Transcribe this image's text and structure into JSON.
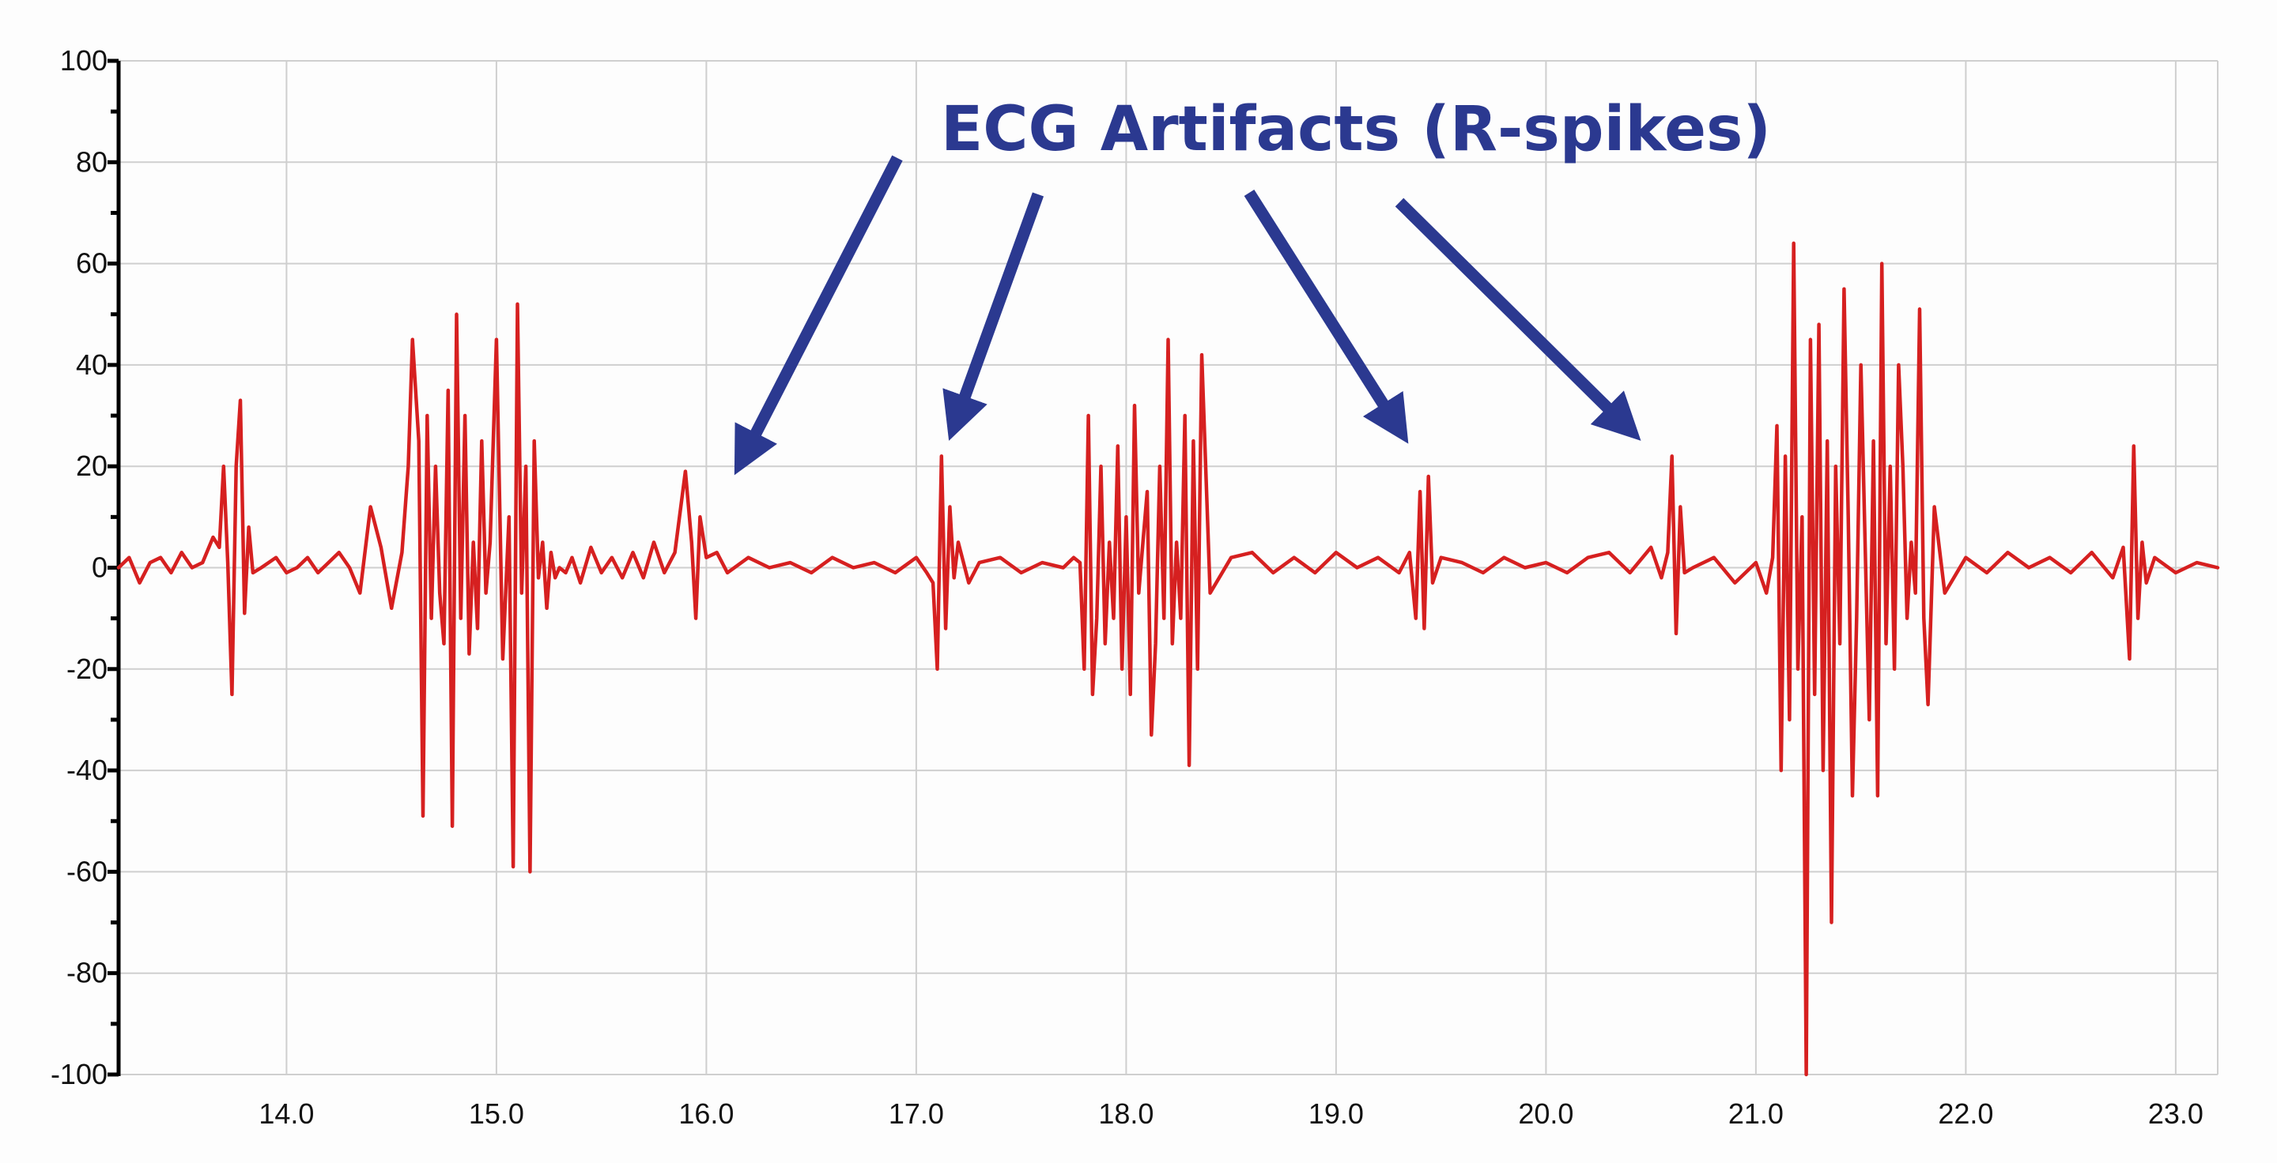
{
  "chart_data": {
    "type": "line",
    "title": "",
    "xlabel": "",
    "ylabel": "",
    "xlim": [
      13.2,
      23.2
    ],
    "ylim": [
      -100,
      100
    ],
    "x_ticks": [
      14.0,
      15.0,
      16.0,
      17.0,
      18.0,
      19.0,
      20.0,
      21.0,
      22.0,
      23.0
    ],
    "x_tick_labels": [
      "14.0",
      "15.0",
      "16.0",
      "17.0",
      "18.0",
      "19.0",
      "20.0",
      "21.0",
      "22.0",
      "23.0"
    ],
    "y_ticks": [
      -100,
      -80,
      -60,
      -40,
      -20,
      0,
      20,
      40,
      60,
      80,
      100
    ],
    "y_tick_labels": [
      "-100",
      "-80",
      "-60",
      "-40",
      "-20",
      "0",
      "20",
      "40",
      "60",
      "80",
      "100"
    ],
    "grid": true,
    "legend": "none",
    "series": [
      {
        "color": "#d62020",
        "x": [
          13.2,
          13.25,
          13.3,
          13.35,
          13.4,
          13.45,
          13.5,
          13.55,
          13.6,
          13.65,
          13.68,
          13.7,
          13.72,
          13.74,
          13.76,
          13.78,
          13.8,
          13.82,
          13.84,
          13.88,
          13.95,
          14.0,
          14.05,
          14.1,
          14.15,
          14.2,
          14.25,
          14.3,
          14.35,
          14.4,
          14.45,
          14.5,
          14.55,
          14.58,
          14.6,
          14.63,
          14.65,
          14.67,
          14.69,
          14.71,
          14.73,
          14.75,
          14.77,
          14.79,
          14.81,
          14.83,
          14.85,
          14.87,
          14.89,
          14.91,
          14.93,
          14.95,
          14.97,
          15.0,
          15.03,
          15.06,
          15.08,
          15.1,
          15.12,
          15.14,
          15.16,
          15.18,
          15.2,
          15.22,
          15.24,
          15.26,
          15.28,
          15.3,
          15.33,
          15.36,
          15.4,
          15.45,
          15.5,
          15.55,
          15.6,
          15.65,
          15.7,
          15.75,
          15.8,
          15.85,
          15.9,
          15.93,
          15.95,
          15.97,
          16.0,
          16.05,
          16.1,
          16.2,
          16.3,
          16.4,
          16.5,
          16.6,
          16.7,
          16.8,
          16.9,
          17.0,
          17.05,
          17.08,
          17.1,
          17.12,
          17.14,
          17.16,
          17.18,
          17.2,
          17.25,
          17.3,
          17.4,
          17.5,
          17.6,
          17.7,
          17.75,
          17.78,
          17.8,
          17.82,
          17.84,
          17.86,
          17.88,
          17.9,
          17.92,
          17.94,
          17.96,
          17.98,
          18.0,
          18.02,
          18.04,
          18.06,
          18.08,
          18.1,
          18.12,
          18.14,
          18.16,
          18.18,
          18.2,
          18.22,
          18.24,
          18.26,
          18.28,
          18.3,
          18.32,
          18.34,
          18.36,
          18.4,
          18.5,
          18.6,
          18.7,
          18.8,
          18.9,
          19.0,
          19.1,
          19.2,
          19.3,
          19.35,
          19.38,
          19.4,
          19.42,
          19.44,
          19.46,
          19.5,
          19.6,
          19.7,
          19.8,
          19.9,
          20.0,
          20.1,
          20.2,
          20.3,
          20.4,
          20.5,
          20.55,
          20.58,
          20.6,
          20.62,
          20.64,
          20.66,
          20.7,
          20.8,
          20.9,
          21.0,
          21.05,
          21.08,
          21.1,
          21.12,
          21.14,
          21.16,
          21.18,
          21.2,
          21.22,
          21.24,
          21.26,
          21.28,
          21.3,
          21.32,
          21.34,
          21.36,
          21.38,
          21.4,
          21.42,
          21.44,
          21.46,
          21.48,
          21.5,
          21.52,
          21.54,
          21.56,
          21.58,
          21.6,
          21.62,
          21.64,
          21.66,
          21.68,
          21.7,
          21.72,
          21.74,
          21.76,
          21.78,
          21.8,
          21.82,
          21.85,
          21.9,
          22.0,
          22.1,
          22.2,
          22.3,
          22.4,
          22.5,
          22.6,
          22.7,
          22.75,
          22.78,
          22.8,
          22.82,
          22.84,
          22.86,
          22.9,
          23.0,
          23.1,
          23.2
        ],
        "y": [
          0,
          2,
          -3,
          1,
          2,
          -1,
          3,
          0,
          1,
          6,
          4,
          20,
          1,
          -25,
          20,
          33,
          -9,
          8,
          -1,
          0,
          2,
          -1,
          0,
          2,
          -1,
          1,
          3,
          0,
          -5,
          12,
          4,
          -8,
          3,
          20,
          45,
          25,
          -49,
          30,
          -10,
          20,
          -5,
          -15,
          35,
          -51,
          50,
          -10,
          30,
          -17,
          5,
          -12,
          25,
          -5,
          5,
          45,
          -18,
          10,
          -59,
          52,
          -5,
          20,
          -60,
          25,
          -2,
          5,
          -8,
          3,
          -2,
          0,
          -1,
          2,
          -3,
          4,
          -1,
          2,
          -2,
          3,
          -2,
          5,
          -1,
          3,
          19,
          5,
          -10,
          10,
          2,
          3,
          -1,
          2,
          0,
          1,
          -1,
          2,
          0,
          1,
          -1,
          2,
          -1,
          -3,
          -20,
          22,
          -12,
          12,
          -2,
          5,
          -3,
          1,
          2,
          -1,
          1,
          0,
          2,
          1,
          -20,
          30,
          -25,
          -10,
          20,
          -15,
          5,
          -10,
          24,
          -20,
          10,
          -25,
          32,
          -5,
          5,
          15,
          -33,
          -15,
          20,
          -10,
          45,
          -15,
          5,
          -10,
          30,
          -39,
          25,
          -20,
          42,
          -5,
          2,
          3,
          -1,
          2,
          -1,
          3,
          0,
          2,
          -1,
          3,
          -10,
          15,
          -12,
          18,
          -3,
          2,
          1,
          -1,
          2,
          0,
          1,
          -1,
          2,
          3,
          -1,
          4,
          -2,
          3,
          22,
          -13,
          12,
          -1,
          0,
          2,
          -3,
          1,
          -5,
          2,
          28,
          -40,
          22,
          -30,
          64,
          -20,
          10,
          -100,
          45,
          -25,
          48,
          -40,
          25,
          -70,
          20,
          -15,
          55,
          10,
          -45,
          -10,
          40,
          5,
          -30,
          25,
          -45,
          60,
          -15,
          20,
          -20,
          40,
          20,
          -10,
          5,
          -5,
          51,
          -10,
          -27,
          12,
          -5,
          2,
          -1,
          3,
          0,
          2,
          -1,
          3,
          -2,
          4,
          -18,
          24,
          -10,
          5,
          -3,
          2,
          -1,
          1,
          0
        ]
      }
    ],
    "annotations": [
      {
        "text": "ECG Artifacts (R-spikes)",
        "color": "#2b3990",
        "arrow_targets": [
          {
            "x": 16.18,
            "y": 22
          },
          {
            "x": 17.19,
            "y": 29
          },
          {
            "x": 19.29,
            "y": 28
          },
          {
            "x": 20.38,
            "y": 28
          }
        ]
      }
    ]
  }
}
